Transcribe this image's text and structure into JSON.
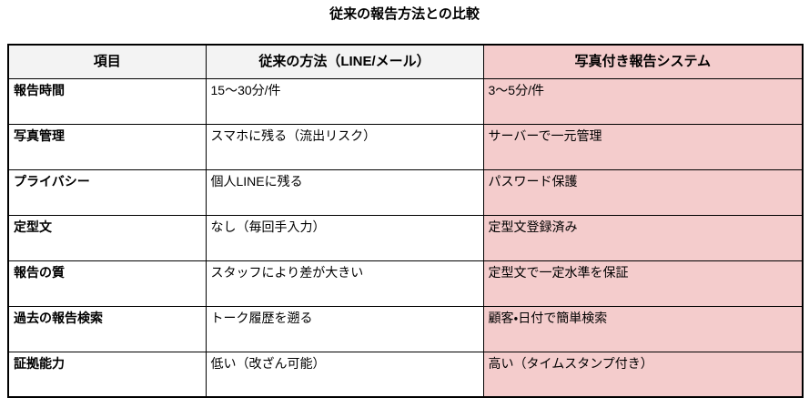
{
  "page_title": "従来の報告方法との比較",
  "colors": {
    "highlight_column_bg": "#f4cccc",
    "header_bg": "#f3f3f3",
    "border": "#000000",
    "text": "#000000"
  },
  "table": {
    "columns": [
      {
        "key": "item",
        "label": "項目",
        "highlight": false
      },
      {
        "key": "old",
        "label": "従来の方法（LINE/メール）",
        "highlight": false
      },
      {
        "key": "new",
        "label": "写真付き報告システム",
        "highlight": true
      }
    ],
    "rows": [
      {
        "item": "報告時間",
        "old": "15〜30分/件",
        "new": "3〜5分/件"
      },
      {
        "item": "写真管理",
        "old": "スマホに残る（流出リスク）",
        "new": "サーバーで一元管理"
      },
      {
        "item": "プライバシー",
        "old": "個人LINEに残る",
        "new": "パスワード保護"
      },
      {
        "item": "定型文",
        "old": "なし（毎回手入力）",
        "new": "定型文登録済み"
      },
      {
        "item": "報告の質",
        "old": "スタッフにより差が大きい",
        "new": "定型文で一定水準を保証"
      },
      {
        "item": "過去の報告検索",
        "old": "トーク履歴を遡る",
        "new": "顧客・日付で簡単検索"
      },
      {
        "item": "証拠能力",
        "old": "低い（改ざん可能）",
        "new": "高い（タイムスタンプ付き）"
      }
    ]
  }
}
